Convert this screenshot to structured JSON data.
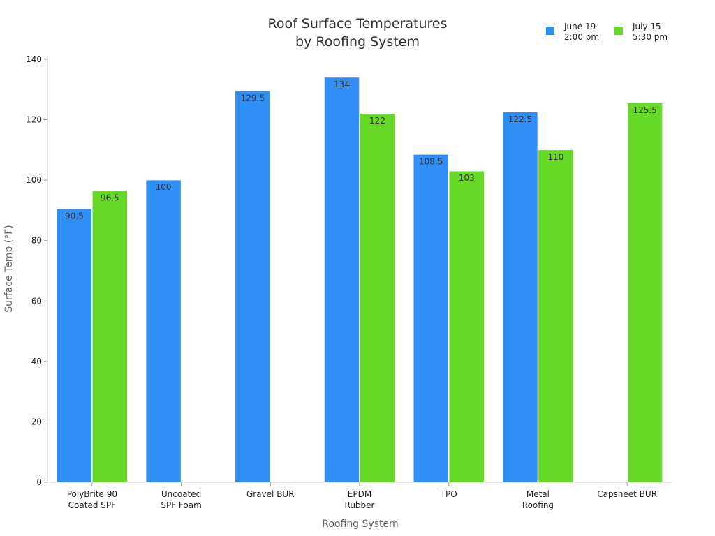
{
  "chart_data": {
    "type": "bar",
    "title": [
      "Roof Surface Temperatures",
      "by Roofing System"
    ],
    "xlabel": "Roofing System",
    "ylabel": "Surface Temp (°F)",
    "ylim": [
      0,
      140
    ],
    "yticks": [
      0,
      20,
      40,
      60,
      80,
      100,
      120,
      140
    ],
    "legend_position": "top-right",
    "grid": false,
    "categories": [
      [
        "PolyBrite 90",
        "Coated SPF"
      ],
      [
        "Uncoated",
        "SPF Foam"
      ],
      [
        "Gravel BUR"
      ],
      [
        "EPDM",
        "Rubber"
      ],
      [
        "TPO"
      ],
      [
        "Metal",
        "Roofing"
      ],
      [
        "Capsheet BUR"
      ]
    ],
    "series": [
      {
        "name": [
          "June 19",
          "2:00 pm"
        ],
        "color": "#2f8ff5",
        "values": [
          90.5,
          100,
          129.5,
          134,
          108.5,
          122.5,
          null
        ],
        "labels": [
          "90.5",
          "100",
          "129.5",
          "134",
          "108.5",
          "122.5",
          null
        ]
      },
      {
        "name": [
          "July 15",
          "5:30 pm"
        ],
        "color": "#66d926",
        "values": [
          96.5,
          null,
          null,
          122,
          103,
          110,
          125.5
        ],
        "labels": [
          "96.5",
          null,
          null,
          "122",
          "103",
          "110",
          "125.5"
        ]
      }
    ]
  }
}
